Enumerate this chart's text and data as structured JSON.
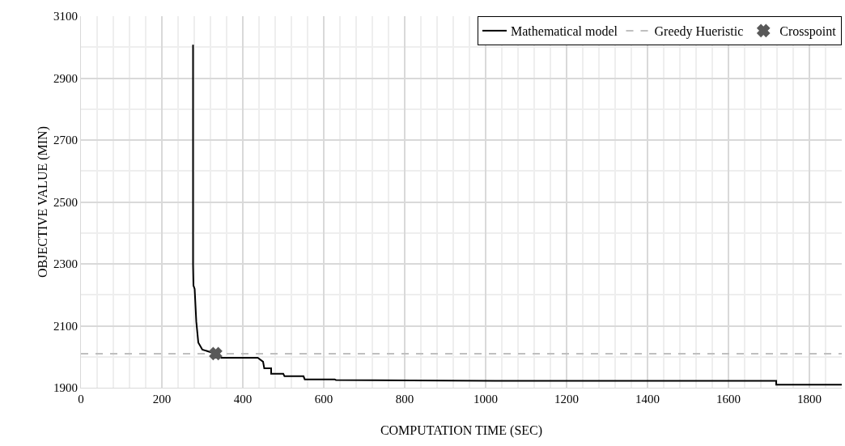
{
  "chart_data": {
    "type": "line",
    "xlabel": "COMPUTATION TIME (SEC)",
    "ylabel": "OBJECTIVE VALUE (MIN)",
    "xlim": [
      0,
      1880
    ],
    "xticks": [
      0,
      200,
      400,
      600,
      800,
      1000,
      1200,
      1400,
      1600,
      1800
    ],
    "ylim": [
      1900,
      3100
    ],
    "yticks": [
      1900,
      2100,
      2300,
      2500,
      2700,
      2900,
      3100
    ],
    "grid": true,
    "legend": "top right",
    "series": [
      {
        "name": "Mathematical model",
        "color": "#000000",
        "line_style": "solid",
        "marker": "none",
        "x": [
          277,
          277,
          278,
          281,
          285,
          290,
          300,
          333,
          347,
          437,
          450,
          453,
          470,
          470,
          500,
          503,
          550,
          553,
          627,
          630,
          1023,
          1718,
          1718,
          1880
        ],
        "values": [
          3008,
          2297,
          2230,
          2219,
          2114,
          2046,
          2023,
          2010,
          1997,
          1997,
          1984,
          1963,
          1963,
          1945,
          1945,
          1937,
          1937,
          1927,
          1927,
          1925,
          1922,
          1922,
          1910,
          1910
        ]
      },
      {
        "name": "Greedy Hueristic",
        "color": "#bfbfbf",
        "line_style": "dashed",
        "marker": "none",
        "x": [
          0,
          1880
        ],
        "values": [
          2010,
          2010
        ]
      },
      {
        "name": "Crosspoint",
        "type": "scatter",
        "color": "#595959",
        "marker": "cross",
        "x": [
          333
        ],
        "values": [
          2010
        ]
      }
    ]
  }
}
